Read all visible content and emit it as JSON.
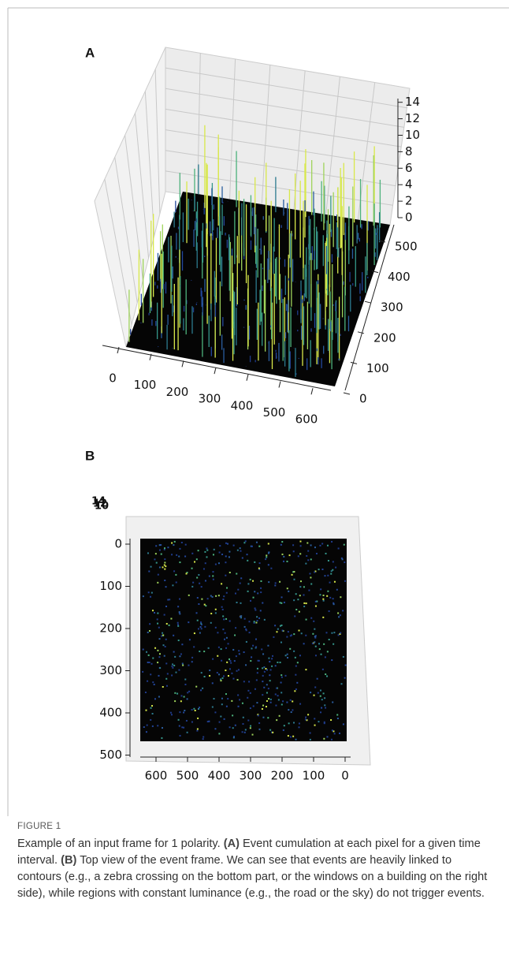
{
  "figure": {
    "panels": [
      {
        "label": "A",
        "zticks": [
          0,
          2,
          4,
          6,
          8,
          10,
          12,
          14
        ],
        "yticks": [
          0,
          100,
          200,
          300,
          400,
          500
        ],
        "xticks": [
          0,
          100,
          200,
          300,
          400,
          500,
          600
        ]
      },
      {
        "label": "B",
        "zticks": [
          14,
          12,
          10
        ],
        "yticks": [
          0,
          100,
          200,
          300,
          400,
          500
        ],
        "xticks": [
          600,
          500,
          400,
          300,
          200,
          100,
          0
        ]
      }
    ],
    "caption": {
      "label": "FIGURE 1",
      "parts": [
        "Example of an input frame for 1 polarity. ",
        "(A)",
        " Event cumulation at each pixel for a given time interval. ",
        "(B)",
        " Top view of the event frame. We can see that events are heavily linked to contours (e.g., a zebra crossing on the bottom part, or the windows on a building on the right side), while regions with constant luminance (e.g., the road or the sky) do not trigger events."
      ]
    }
  }
}
